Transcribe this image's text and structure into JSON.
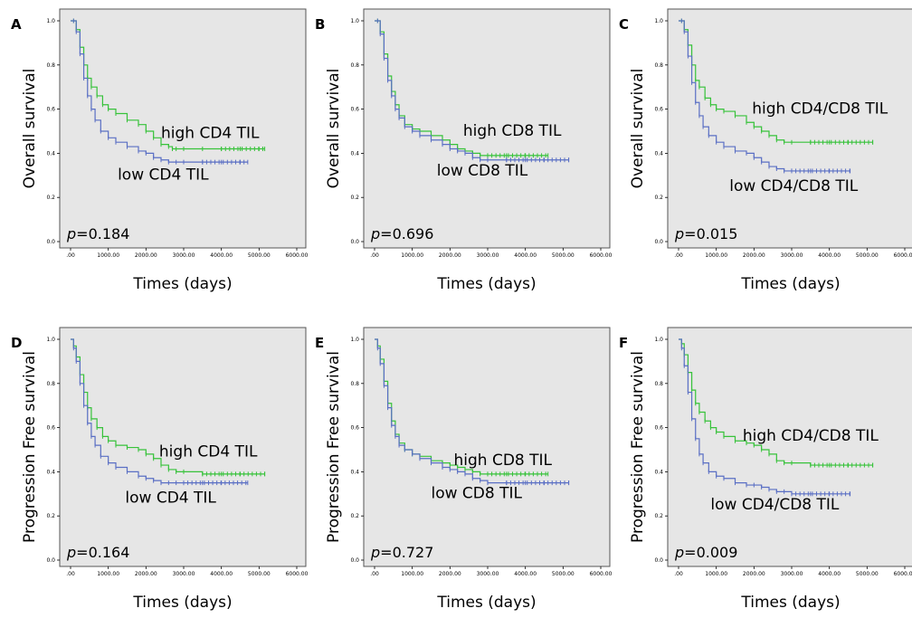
{
  "colors": {
    "high": "#37c23a",
    "low": "#5a6fc4",
    "plot_bg": "#e6e6e6",
    "frame": "#555555"
  },
  "chart_data": [
    {
      "panel": "A",
      "type": "line",
      "xlabel": "Times (days)",
      "ylabel": "Overall survival",
      "xlim": [
        0,
        6000
      ],
      "ylim": [
        0,
        1
      ],
      "xticks": [
        ".00",
        "1000.00",
        "2000.00",
        "3000.00",
        "4000.00",
        "5000.00",
        "6000.00"
      ],
      "yticks": [
        "0.0",
        "0.2",
        "0.4",
        "0.6",
        "0.8",
        "1.0"
      ],
      "p_label": "p",
      "p_value": "=0.184",
      "series": [
        {
          "name": "high CD4 TIL",
          "color": "high",
          "label_at": [
            2400,
            0.47
          ],
          "x": [
            0,
            80,
            150,
            250,
            350,
            450,
            550,
            700,
            850,
            1000,
            1200,
            1500,
            1800,
            2000,
            2200,
            2400,
            2600,
            2700,
            2800,
            3000,
            3500,
            4000,
            4500,
            5000,
            5150
          ],
          "y": [
            1.0,
            1.0,
            0.96,
            0.88,
            0.8,
            0.74,
            0.7,
            0.66,
            0.62,
            0.6,
            0.58,
            0.55,
            0.53,
            0.5,
            0.47,
            0.44,
            0.43,
            0.42,
            0.42,
            0.42,
            0.42,
            0.42,
            0.42,
            0.42,
            0.42
          ]
        },
        {
          "name": "low CD4 TIL",
          "color": "low",
          "label_at": [
            1250,
            0.28
          ],
          "x": [
            0,
            80,
            150,
            250,
            350,
            450,
            550,
            650,
            800,
            1000,
            1200,
            1500,
            1800,
            2000,
            2200,
            2400,
            2600,
            2800,
            3000,
            3500,
            4000,
            4500,
            4700
          ],
          "y": [
            1.0,
            1.0,
            0.95,
            0.85,
            0.74,
            0.66,
            0.6,
            0.55,
            0.5,
            0.47,
            0.45,
            0.43,
            0.41,
            0.4,
            0.38,
            0.37,
            0.36,
            0.36,
            0.36,
            0.36,
            0.36,
            0.36,
            0.36
          ]
        }
      ]
    },
    {
      "panel": "B",
      "type": "line",
      "xlabel": "Times (days)",
      "ylabel": "Overall survival",
      "xlim": [
        0,
        6000
      ],
      "ylim": [
        0,
        1
      ],
      "xticks": [
        ".00",
        "1000.00",
        "2000.00",
        "3000.00",
        "4000.00",
        "5000.00",
        "6000.00"
      ],
      "yticks": [
        "0.0",
        "0.2",
        "0.4",
        "0.6",
        "0.8",
        "1.0"
      ],
      "p_label": "p",
      "p_value": "=0.696",
      "series": [
        {
          "name": "high CD8 TIL",
          "color": "high",
          "label_at": [
            2350,
            0.48
          ],
          "x": [
            0,
            80,
            150,
            250,
            350,
            450,
            550,
            650,
            800,
            1000,
            1200,
            1500,
            1800,
            2000,
            2200,
            2400,
            2600,
            2800,
            3000,
            3500,
            4000,
            4600
          ],
          "y": [
            1.0,
            1.0,
            0.95,
            0.85,
            0.75,
            0.68,
            0.62,
            0.57,
            0.53,
            0.51,
            0.5,
            0.48,
            0.46,
            0.44,
            0.42,
            0.41,
            0.4,
            0.39,
            0.39,
            0.39,
            0.39,
            0.39
          ]
        },
        {
          "name": "low CD8 TIL",
          "color": "low",
          "label_at": [
            1650,
            0.3
          ],
          "x": [
            0,
            80,
            150,
            250,
            350,
            450,
            550,
            650,
            800,
            1000,
            1200,
            1500,
            1800,
            2000,
            2200,
            2400,
            2600,
            2800,
            3000,
            3500,
            4000,
            4500,
            5150
          ],
          "y": [
            1.0,
            1.0,
            0.94,
            0.83,
            0.73,
            0.66,
            0.6,
            0.56,
            0.52,
            0.5,
            0.48,
            0.46,
            0.44,
            0.42,
            0.41,
            0.4,
            0.38,
            0.37,
            0.37,
            0.37,
            0.37,
            0.37,
            0.37
          ]
        }
      ]
    },
    {
      "panel": "C",
      "type": "line",
      "xlabel": "Times (days)",
      "ylabel": "Overall survival",
      "xlim": [
        0,
        6000
      ],
      "ylim": [
        0,
        1
      ],
      "xticks": [
        ".00",
        "1000.00",
        "2000.00",
        "3000.00",
        "4000.00",
        "5000.00",
        "6000.00"
      ],
      "yticks": [
        "0.0",
        "0.2",
        "0.4",
        "0.6",
        "0.8",
        "1.0"
      ],
      "p_label": "p",
      "p_value": "=0.015",
      "series": [
        {
          "name": "high CD4/CD8 TIL",
          "color": "high",
          "label_at": [
            1950,
            0.58
          ],
          "x": [
            0,
            80,
            150,
            250,
            350,
            450,
            550,
            700,
            850,
            1000,
            1200,
            1500,
            1800,
            2000,
            2200,
            2400,
            2600,
            2800,
            3000,
            3500,
            4000,
            4500,
            5150
          ],
          "y": [
            1.0,
            1.0,
            0.96,
            0.89,
            0.8,
            0.73,
            0.7,
            0.65,
            0.62,
            0.6,
            0.59,
            0.57,
            0.54,
            0.52,
            0.5,
            0.48,
            0.46,
            0.45,
            0.45,
            0.45,
            0.45,
            0.45,
            0.45
          ]
        },
        {
          "name": "low CD4/CD8 TIL",
          "color": "low",
          "label_at": [
            1350,
            0.23
          ],
          "x": [
            0,
            80,
            150,
            250,
            350,
            450,
            550,
            650,
            800,
            1000,
            1200,
            1500,
            1800,
            2000,
            2200,
            2400,
            2600,
            2800,
            3000,
            3500,
            4000,
            4550
          ],
          "y": [
            1.0,
            1.0,
            0.95,
            0.84,
            0.72,
            0.63,
            0.57,
            0.52,
            0.48,
            0.45,
            0.43,
            0.41,
            0.4,
            0.38,
            0.36,
            0.34,
            0.33,
            0.32,
            0.32,
            0.32,
            0.32,
            0.32
          ]
        }
      ]
    },
    {
      "panel": "D",
      "type": "line",
      "xlabel": "Times (days)",
      "ylabel": "Progression Free survival",
      "xlim": [
        0,
        6000
      ],
      "ylim": [
        0,
        1
      ],
      "xticks": [
        ".00",
        "1000.00",
        "2000.00",
        "3000.00",
        "4000.00",
        "5000.00",
        "6000.00"
      ],
      "yticks": [
        "0.0",
        "0.2",
        "0.4",
        "0.6",
        "0.8",
        "1.0"
      ],
      "p_label": "p",
      "p_value": "=0.164",
      "series": [
        {
          "name": "high CD4 TIL",
          "color": "high",
          "label_at": [
            2350,
            0.47
          ],
          "x": [
            0,
            80,
            150,
            250,
            350,
            450,
            550,
            700,
            850,
            1000,
            1200,
            1500,
            1800,
            2000,
            2200,
            2400,
            2600,
            2800,
            3000,
            3500,
            4000,
            4500,
            5150
          ],
          "y": [
            1.0,
            0.97,
            0.92,
            0.84,
            0.76,
            0.69,
            0.64,
            0.6,
            0.56,
            0.54,
            0.52,
            0.51,
            0.5,
            0.48,
            0.46,
            0.43,
            0.41,
            0.4,
            0.4,
            0.39,
            0.39,
            0.39,
            0.39
          ]
        },
        {
          "name": "low CD4 TIL",
          "color": "low",
          "label_at": [
            1450,
            0.26
          ],
          "x": [
            0,
            80,
            150,
            250,
            350,
            450,
            550,
            650,
            800,
            1000,
            1200,
            1500,
            1800,
            2000,
            2200,
            2400,
            2600,
            2800,
            3000,
            3500,
            4000,
            4700
          ],
          "y": [
            1.0,
            0.96,
            0.9,
            0.8,
            0.7,
            0.62,
            0.56,
            0.52,
            0.47,
            0.44,
            0.42,
            0.4,
            0.38,
            0.37,
            0.36,
            0.35,
            0.35,
            0.35,
            0.35,
            0.35,
            0.35,
            0.35
          ]
        }
      ]
    },
    {
      "panel": "E",
      "type": "line",
      "xlabel": "Times (days)",
      "ylabel": "Progression Free survival",
      "xlim": [
        0,
        6000
      ],
      "ylim": [
        0,
        1
      ],
      "xticks": [
        ".00",
        "1000.00",
        "2000.00",
        "3000.00",
        "4000.00",
        "5000.00",
        "6000.00"
      ],
      "yticks": [
        "0.0",
        "0.2",
        "0.4",
        "0.6",
        "0.8",
        "1.0"
      ],
      "p_label": "p",
      "p_value": "=0.727",
      "series": [
        {
          "name": "high CD8 TIL",
          "color": "high",
          "label_at": [
            2100,
            0.43
          ],
          "x": [
            0,
            80,
            150,
            250,
            350,
            450,
            550,
            650,
            800,
            1000,
            1200,
            1500,
            1800,
            2000,
            2200,
            2400,
            2600,
            2800,
            3000,
            3500,
            4000,
            4600
          ],
          "y": [
            1.0,
            0.97,
            0.91,
            0.81,
            0.71,
            0.63,
            0.57,
            0.53,
            0.5,
            0.48,
            0.47,
            0.45,
            0.44,
            0.43,
            0.42,
            0.41,
            0.4,
            0.39,
            0.39,
            0.39,
            0.39,
            0.39
          ]
        },
        {
          "name": "low CD8 TIL",
          "color": "low",
          "label_at": [
            1500,
            0.28
          ],
          "x": [
            0,
            80,
            150,
            250,
            350,
            450,
            550,
            650,
            800,
            1000,
            1200,
            1500,
            1800,
            2000,
            2200,
            2400,
            2600,
            2800,
            3000,
            3500,
            4000,
            4500,
            5150
          ],
          "y": [
            1.0,
            0.96,
            0.89,
            0.79,
            0.69,
            0.61,
            0.56,
            0.52,
            0.5,
            0.48,
            0.46,
            0.44,
            0.42,
            0.41,
            0.4,
            0.39,
            0.37,
            0.36,
            0.35,
            0.35,
            0.35,
            0.35,
            0.35
          ]
        }
      ]
    },
    {
      "panel": "F",
      "type": "line",
      "xlabel": "Times (days)",
      "ylabel": "Progression Free survival",
      "xlim": [
        0,
        6000
      ],
      "ylim": [
        0,
        1
      ],
      "xticks": [
        ".00",
        "1000.00",
        "2000.00",
        "3000.00",
        "4000.00",
        "5000.00",
        "6000.00"
      ],
      "yticks": [
        "0.0",
        "0.2",
        "0.4",
        "0.6",
        "0.8",
        "1.0"
      ],
      "p_label": "p",
      "p_value": "=0.009",
      "series": [
        {
          "name": "high CD4/CD8 TIL",
          "color": "high",
          "label_at": [
            1700,
            0.54
          ],
          "x": [
            0,
            80,
            150,
            250,
            350,
            450,
            550,
            700,
            850,
            1000,
            1200,
            1500,
            1800,
            2000,
            2200,
            2400,
            2600,
            2800,
            3000,
            3500,
            4000,
            4500,
            5150
          ],
          "y": [
            1.0,
            0.98,
            0.93,
            0.85,
            0.77,
            0.71,
            0.67,
            0.63,
            0.6,
            0.58,
            0.56,
            0.54,
            0.53,
            0.52,
            0.5,
            0.48,
            0.45,
            0.44,
            0.44,
            0.43,
            0.43,
            0.43,
            0.43
          ]
        },
        {
          "name": "low CD4/CD8 TIL",
          "color": "low",
          "label_at": [
            850,
            0.23
          ],
          "x": [
            0,
            80,
            150,
            250,
            350,
            450,
            550,
            650,
            800,
            1000,
            1200,
            1500,
            1800,
            2000,
            2200,
            2400,
            2600,
            2800,
            3000,
            3500,
            4000,
            4550
          ],
          "y": [
            1.0,
            0.96,
            0.88,
            0.76,
            0.64,
            0.55,
            0.48,
            0.44,
            0.4,
            0.38,
            0.37,
            0.35,
            0.34,
            0.34,
            0.33,
            0.32,
            0.31,
            0.31,
            0.3,
            0.3,
            0.3,
            0.3
          ]
        }
      ]
    }
  ]
}
